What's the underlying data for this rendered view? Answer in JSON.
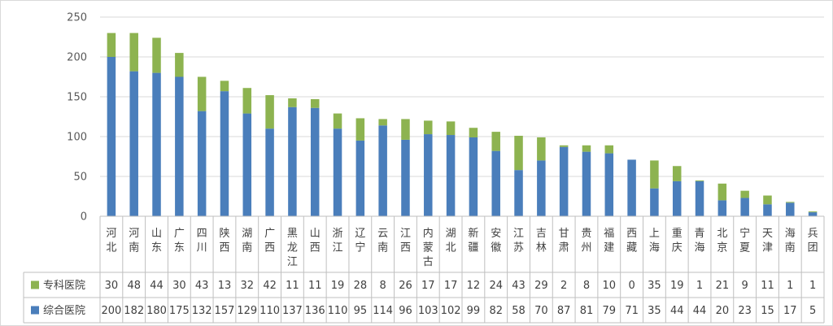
{
  "chart_data": {
    "type": "bar",
    "stacked": true,
    "data_table": true,
    "categories": [
      "河北",
      "河南",
      "山东",
      "广东",
      "四川",
      "陕西",
      "湖南",
      "广西",
      "黑龙江",
      "山西",
      "浙江",
      "辽宁",
      "云南",
      "江西",
      "内蒙古",
      "湖北",
      "新疆",
      "安徽",
      "江苏",
      "吉林",
      "甘肃",
      "贵州",
      "福建",
      "西藏",
      "上海",
      "重庆",
      "青海",
      "北京",
      "宁夏",
      "天津",
      "海南",
      "兵团"
    ],
    "series": [
      {
        "name": "综合医院",
        "color": "#4a7ebb",
        "values": [
          200,
          182,
          180,
          175,
          132,
          157,
          129,
          110,
          137,
          136,
          110,
          95,
          114,
          96,
          103,
          102,
          99,
          82,
          58,
          70,
          87,
          81,
          79,
          71,
          35,
          44,
          44,
          20,
          23,
          15,
          17,
          5
        ]
      },
      {
        "name": "专科医院",
        "color": "#8db350",
        "values": [
          30,
          48,
          44,
          30,
          43,
          13,
          32,
          42,
          11,
          11,
          19,
          28,
          8,
          26,
          17,
          17,
          12,
          24,
          43,
          29,
          2,
          8,
          10,
          0,
          35,
          19,
          1,
          21,
          9,
          11,
          1,
          1
        ]
      }
    ],
    "table_row_order": [
      "专科医院",
      "综合医院"
    ],
    "ylim": [
      0,
      250
    ],
    "yticks": [
      0,
      50,
      100,
      150,
      200,
      250
    ],
    "grid": true
  }
}
